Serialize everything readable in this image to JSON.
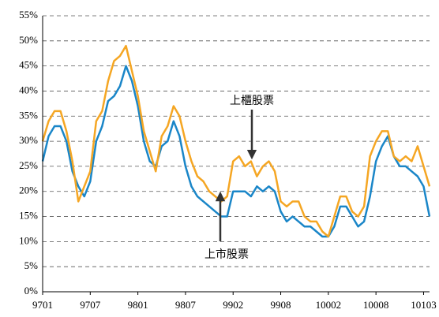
{
  "chart_data": {
    "type": "line",
    "categories": [
      "9701",
      null,
      null,
      null,
      null,
      null,
      null,
      null,
      "9707",
      null,
      null,
      null,
      null,
      null,
      null,
      null,
      "9801",
      null,
      null,
      null,
      null,
      null,
      null,
      null,
      "9807",
      null,
      null,
      null,
      null,
      null,
      null,
      null,
      "9902",
      null,
      null,
      null,
      null,
      null,
      null,
      null,
      "9908",
      null,
      null,
      null,
      null,
      null,
      null,
      null,
      "10002",
      null,
      null,
      null,
      null,
      null,
      null,
      null,
      "10008",
      null,
      null,
      null,
      null,
      null,
      null,
      null,
      "10103",
      null
    ],
    "series": [
      {
        "name": "上市股票",
        "color": "#1a86c8",
        "values": [
          26,
          31,
          33,
          33,
          30,
          24,
          21,
          19,
          22,
          30,
          33,
          38,
          39,
          41,
          45,
          42,
          37,
          30,
          26,
          25,
          29,
          30,
          34,
          31,
          25,
          21,
          19,
          18,
          17,
          16,
          15,
          15,
          20,
          20,
          20,
          19,
          21,
          20,
          21,
          20,
          16,
          14,
          15,
          14,
          13,
          13,
          12,
          11,
          11,
          13,
          17,
          17,
          15,
          13,
          14,
          19,
          26,
          29,
          31,
          27,
          25,
          25,
          24,
          23,
          21,
          15
        ]
      },
      {
        "name": "上櫃股票",
        "color": "#f5a623",
        "values": [
          30,
          34,
          36,
          36,
          32,
          26,
          18,
          21,
          24,
          34,
          36,
          42,
          46,
          47,
          49,
          44,
          39,
          32,
          28,
          24,
          31,
          33,
          37,
          35,
          30,
          26,
          23,
          22,
          20,
          19,
          18,
          19,
          26,
          27,
          25,
          26,
          23,
          25,
          26,
          24,
          18,
          17,
          18,
          18,
          15,
          14,
          14,
          12,
          11,
          15,
          19,
          19,
          16,
          15,
          17,
          27,
          30,
          32,
          32,
          27,
          26,
          27,
          26,
          29,
          25,
          21
        ]
      }
    ],
    "ylim": [
      0,
      55
    ],
    "yticks": [
      {
        "value": 0,
        "label": "0%"
      },
      {
        "value": 5,
        "label": "5%"
      },
      {
        "value": 10,
        "label": "10%"
      },
      {
        "value": 15,
        "label": "15%"
      },
      {
        "value": 20,
        "label": "20%"
      },
      {
        "value": 25,
        "label": "25%"
      },
      {
        "value": 30,
        "label": "30%"
      },
      {
        "value": 35,
        "label": "35%"
      },
      {
        "value": 40,
        "label": "40%"
      },
      {
        "value": 45,
        "label": "45%"
      },
      {
        "value": 50,
        "label": "50%"
      },
      {
        "value": 55,
        "label": "55%"
      }
    ],
    "grid": true
  }
}
